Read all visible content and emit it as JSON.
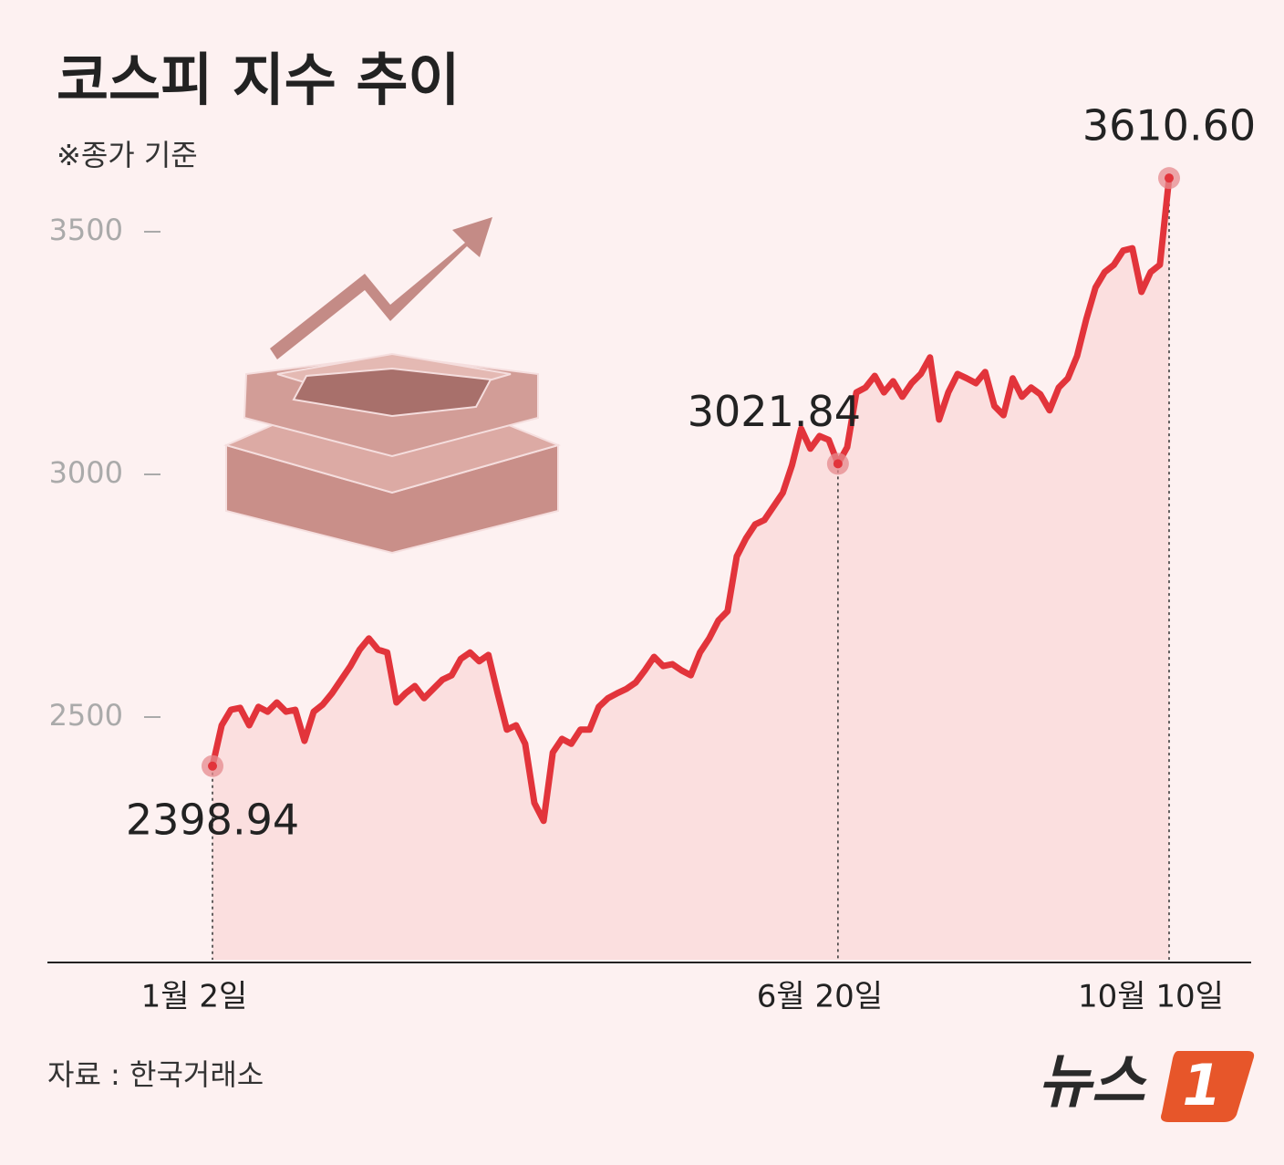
{
  "chart_data": {
    "type": "line",
    "title": "코스피 지수 추이",
    "subtitle": "※종가 기준",
    "source": "자료 : 한국거래소",
    "logo": {
      "text": "뉴스",
      "mark": "1"
    },
    "categories": [
      "1월 2일",
      null,
      null,
      null,
      null,
      null,
      null,
      null,
      null,
      null,
      null,
      null,
      null,
      null,
      null,
      null,
      null,
      null,
      null,
      null,
      null,
      null,
      null,
      null,
      null,
      null,
      null,
      null,
      null,
      null,
      null,
      null,
      null,
      null,
      null,
      null,
      null,
      null,
      null,
      null,
      null,
      null,
      null,
      null,
      null,
      null,
      null,
      null,
      null,
      null,
      null,
      null,
      null,
      null,
      null,
      null,
      null,
      null,
      null,
      null,
      null,
      null,
      null,
      null,
      null,
      null,
      null,
      null,
      "6월 20일",
      null,
      null,
      null,
      null,
      null,
      null,
      null,
      null,
      null,
      null,
      null,
      null,
      null,
      null,
      null,
      null,
      null,
      null,
      null,
      null,
      null,
      null,
      null,
      null,
      null,
      null,
      null,
      null,
      null,
      null,
      null,
      null,
      null,
      null,
      null,
      "10월 10일"
    ],
    "series": [
      {
        "name": "코스피",
        "color": "#e2343b",
        "values": [
          2398.94,
          2483,
          2515,
          2519,
          2483,
          2521,
          2511,
          2530,
          2511,
          2515,
          2451,
          2511,
          2526,
          2549,
          2577,
          2605,
          2639,
          2662,
          2639,
          2633,
          2530,
          2549,
          2564,
          2539,
          2558,
          2577,
          2586,
          2620,
          2633,
          2615,
          2628,
          2549,
          2474,
          2483,
          2445,
          2323,
          2286,
          2427,
          2455,
          2445,
          2474,
          2474,
          2521,
          2539,
          2549,
          2558,
          2571,
          2596,
          2624,
          2605,
          2609,
          2596,
          2586,
          2633,
          2662,
          2699,
          2718,
          2831,
          2868,
          2897,
          2906,
          2934,
          2962,
          3019,
          3094,
          3053,
          3079,
          3071,
          3021.84,
          3056,
          3169,
          3179,
          3203,
          3169,
          3192,
          3160,
          3188,
          3207,
          3241,
          3113,
          3169,
          3207,
          3198,
          3188,
          3211,
          3141,
          3122,
          3198,
          3160,
          3179,
          3165,
          3132,
          3179,
          3198,
          3244,
          3320,
          3385,
          3417,
          3432,
          3461,
          3466,
          3376,
          3417,
          3432,
          3610.6
        ],
        "value_labels": [
          "2398.94",
          null,
          null,
          null,
          null,
          null,
          null,
          null,
          null,
          null,
          null,
          null,
          null,
          null,
          null,
          null,
          null,
          null,
          null,
          null,
          null,
          null,
          null,
          null,
          null,
          null,
          null,
          null,
          null,
          null,
          null,
          null,
          null,
          null,
          null,
          null,
          null,
          null,
          null,
          null,
          null,
          null,
          null,
          null,
          null,
          null,
          null,
          null,
          null,
          null,
          null,
          null,
          null,
          null,
          null,
          null,
          null,
          null,
          null,
          null,
          null,
          null,
          null,
          null,
          null,
          null,
          null,
          null,
          "3021.84",
          null,
          null,
          null,
          null,
          null,
          null,
          null,
          null,
          null,
          null,
          null,
          null,
          null,
          null,
          null,
          null,
          null,
          null,
          null,
          null,
          null,
          null,
          null,
          null,
          null,
          null,
          null,
          null,
          null,
          null,
          null,
          null,
          null,
          null,
          null,
          "3610.60"
        ]
      }
    ],
    "ylim": [
      2000,
      3700
    ],
    "yticks": [
      2500,
      3000,
      3500
    ],
    "area_color": "#fbdfdf"
  }
}
